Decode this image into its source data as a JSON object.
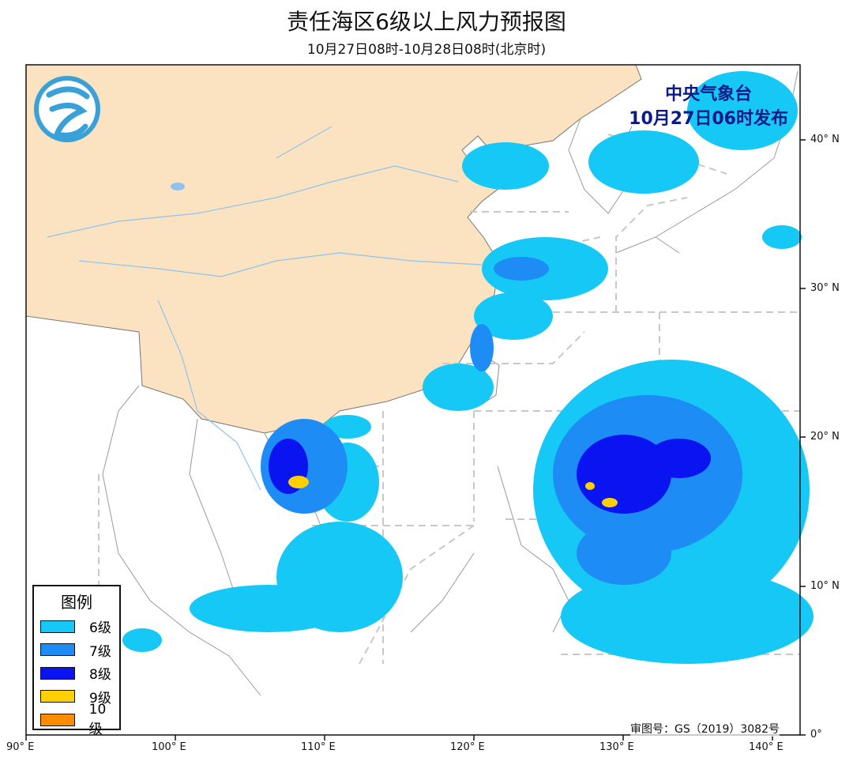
{
  "header": {
    "title": "责任海区6级以上风力预报图",
    "subtitle": "10月27日08时-10月28日08时(北京时)"
  },
  "issuer": {
    "line1": "中央气象台",
    "line2": "10月27日06时发布"
  },
  "logo": {
    "icon": "cma-logo-icon"
  },
  "legend": {
    "title": "图例",
    "items": [
      {
        "label": "6级",
        "color": "#16c8f6"
      },
      {
        "label": "7级",
        "color": "#1e8cf5"
      },
      {
        "label": "8级",
        "color": "#0a14f0"
      },
      {
        "label": "9级",
        "color": "#ffd000"
      },
      {
        "label": "10级",
        "color": "#ff8c00"
      }
    ]
  },
  "axes": {
    "latitudes": [
      "40° N",
      "30° N",
      "20° N",
      "10° N",
      "0°"
    ],
    "longitudes": [
      "90° E",
      "100° E",
      "110° E",
      "120° E",
      "130° E",
      "140° E"
    ]
  },
  "approval_number": "审图号：GS（2019）3082号",
  "colors": {
    "land": "#fbe2c0",
    "sea": "#ffffff",
    "border": "#888888",
    "river": "#8fc3ee",
    "boundary_dash": "#c8c8c8"
  }
}
